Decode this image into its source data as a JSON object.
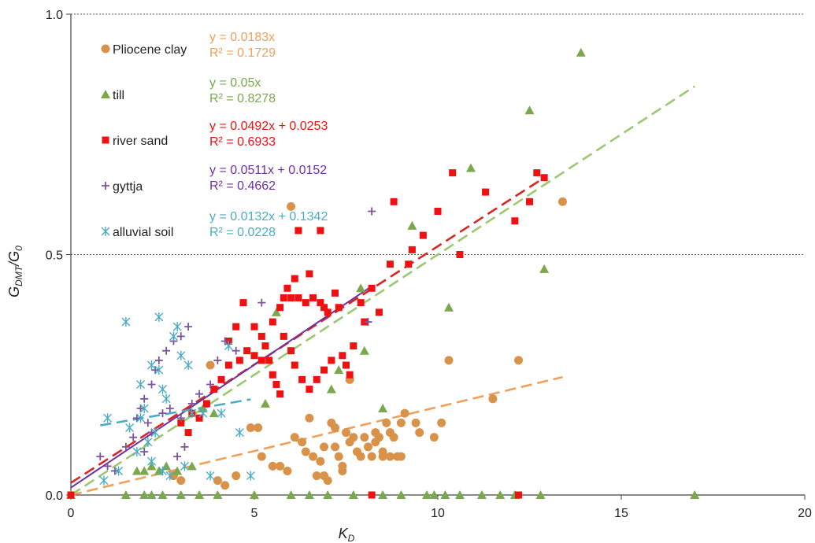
{
  "chart_data": {
    "type": "scatter",
    "xlabel": {
      "main": "K",
      "sub": "D"
    },
    "ylabel": {
      "main": "G",
      "sub": "DMT",
      "main2": "/G",
      "sub2": "0"
    },
    "xlim": [
      0,
      20
    ],
    "ylim": [
      0,
      1
    ],
    "x_ticks": [
      0,
      5,
      10,
      15,
      20
    ],
    "x_tick_labels": [
      "0",
      "5",
      "10",
      "15",
      "20"
    ],
    "y_ticks": [
      0,
      0.5,
      1
    ],
    "y_tick_labels": [
      "0.0",
      "0.5",
      "1.0"
    ],
    "grid": "horizontal dashed at 0.5 and 1.0",
    "legend_position": "top-left",
    "series": [
      {
        "name": "Pliocene clay",
        "marker": "circle",
        "color": "#d9924a",
        "equation": "y = 0.0183x",
        "r2": "R² = 0.1729",
        "eq_color": "#f0a05a",
        "fit": {
          "slope": 0.0183,
          "intercept": 0,
          "x0": 0,
          "x1": 13.4,
          "color": "#f0a05a"
        },
        "points": [
          [
            2.8,
            0.04
          ],
          [
            3.0,
            0.03
          ],
          [
            4.0,
            0.03
          ],
          [
            4.2,
            0.02
          ],
          [
            4.5,
            0.04
          ],
          [
            3.8,
            0.27
          ],
          [
            4.9,
            0.14
          ],
          [
            5.1,
            0.14
          ],
          [
            5.2,
            0.08
          ],
          [
            5.5,
            0.06
          ],
          [
            5.7,
            0.06
          ],
          [
            5.9,
            0.05
          ],
          [
            6.0,
            0.6
          ],
          [
            6.1,
            0.12
          ],
          [
            6.3,
            0.11
          ],
          [
            6.4,
            0.09
          ],
          [
            6.5,
            0.16
          ],
          [
            6.6,
            0.08
          ],
          [
            6.8,
            0.07
          ],
          [
            6.9,
            0.1
          ],
          [
            6.7,
            0.04
          ],
          [
            6.9,
            0.04
          ],
          [
            7.0,
            0.03
          ],
          [
            7.1,
            0.15
          ],
          [
            7.2,
            0.14
          ],
          [
            7.2,
            0.1
          ],
          [
            7.3,
            0.08
          ],
          [
            7.4,
            0.06
          ],
          [
            7.4,
            0.05
          ],
          [
            7.5,
            0.13
          ],
          [
            7.6,
            0.11
          ],
          [
            7.6,
            0.24
          ],
          [
            7.7,
            0.12
          ],
          [
            7.8,
            0.09
          ],
          [
            7.9,
            0.08
          ],
          [
            8.0,
            0.12
          ],
          [
            8.1,
            0.1
          ],
          [
            8.2,
            0.08
          ],
          [
            8.3,
            0.11
          ],
          [
            8.3,
            0.13
          ],
          [
            8.4,
            0.12
          ],
          [
            8.5,
            0.09
          ],
          [
            8.5,
            0.08
          ],
          [
            8.6,
            0.15
          ],
          [
            8.7,
            0.13
          ],
          [
            8.8,
            0.12
          ],
          [
            8.9,
            0.08
          ],
          [
            9.0,
            0.15
          ],
          [
            9.1,
            0.17
          ],
          [
            9.4,
            0.15
          ],
          [
            9.5,
            0.13
          ],
          [
            9.9,
            0.12
          ],
          [
            10.1,
            0.15
          ],
          [
            10.3,
            0.28
          ],
          [
            11.5,
            0.2
          ],
          [
            12.2,
            0.28
          ],
          [
            13.4,
            0.61
          ],
          [
            9.0,
            0.08
          ],
          [
            8.7,
            0.08
          ]
        ]
      },
      {
        "name": "till",
        "marker": "triangle",
        "color": "#7aa84c",
        "equation": "y = 0.05x",
        "r2": "R² = 0.8278",
        "eq_color": "#7aa84c",
        "fit": {
          "slope": 0.05,
          "intercept": 0,
          "x0": 0,
          "x1": 17,
          "color": "#9bc870"
        },
        "points": [
          [
            0,
            0
          ],
          [
            1.5,
            0
          ],
          [
            2.0,
            0
          ],
          [
            2.2,
            0
          ],
          [
            2.5,
            0
          ],
          [
            3.0,
            0
          ],
          [
            3.5,
            0
          ],
          [
            4.0,
            0
          ],
          [
            5.0,
            0
          ],
          [
            6.0,
            0
          ],
          [
            6.5,
            0
          ],
          [
            7.0,
            0
          ],
          [
            7.7,
            0
          ],
          [
            8.5,
            0
          ],
          [
            9.0,
            0
          ],
          [
            9.7,
            0
          ],
          [
            9.9,
            0
          ],
          [
            10.2,
            0
          ],
          [
            10.6,
            0
          ],
          [
            11.2,
            0
          ],
          [
            11.7,
            0
          ],
          [
            12.1,
            0
          ],
          [
            12.8,
            0
          ],
          [
            17.0,
            0
          ],
          [
            1.8,
            0.05
          ],
          [
            2.0,
            0.05
          ],
          [
            2.2,
            0.06
          ],
          [
            2.4,
            0.05
          ],
          [
            2.6,
            0.06
          ],
          [
            2.9,
            0.05
          ],
          [
            3.3,
            0.06
          ],
          [
            3.6,
            0.18
          ],
          [
            3.9,
            0.17
          ],
          [
            5.3,
            0.19
          ],
          [
            5.6,
            0.38
          ],
          [
            7.1,
            0.22
          ],
          [
            7.3,
            0.26
          ],
          [
            7.9,
            0.43
          ],
          [
            8.0,
            0.3
          ],
          [
            8.5,
            0.18
          ],
          [
            9.3,
            0.56
          ],
          [
            10.3,
            0.39
          ],
          [
            10.9,
            0.68
          ],
          [
            12.5,
            0.8
          ],
          [
            12.9,
            0.47
          ],
          [
            13.9,
            0.92
          ]
        ]
      },
      {
        "name": "river sand",
        "marker": "square",
        "color": "#ee1111",
        "equation": "y = 0.0492x + 0.0253",
        "r2": "R² = 0.6933",
        "eq_color": "#ee1111",
        "fit": {
          "slope": 0.0492,
          "intercept": 0.0253,
          "x0": 0,
          "x1": 12.9,
          "color": "#dd2222"
        },
        "points": [
          [
            0,
            0
          ],
          [
            3.0,
            0.15
          ],
          [
            3.2,
            0.13
          ],
          [
            3.3,
            0.17
          ],
          [
            3.5,
            0.16
          ],
          [
            3.7,
            0.19
          ],
          [
            3.9,
            0.22
          ],
          [
            4.1,
            0.24
          ],
          [
            4.3,
            0.27
          ],
          [
            4.6,
            0.28
          ],
          [
            4.8,
            0.3
          ],
          [
            5.0,
            0.29
          ],
          [
            4.7,
            0.4
          ],
          [
            5.0,
            0.35
          ],
          [
            5.2,
            0.33
          ],
          [
            5.3,
            0.31
          ],
          [
            5.4,
            0.28
          ],
          [
            5.5,
            0.25
          ],
          [
            5.6,
            0.23
          ],
          [
            5.7,
            0.21
          ],
          [
            5.5,
            0.36
          ],
          [
            5.7,
            0.39
          ],
          [
            5.8,
            0.41
          ],
          [
            5.9,
            0.43
          ],
          [
            6.0,
            0.41
          ],
          [
            6.2,
            0.41
          ],
          [
            6.4,
            0.4
          ],
          [
            6.6,
            0.41
          ],
          [
            6.8,
            0.4
          ],
          [
            6.9,
            0.39
          ],
          [
            7.0,
            0.38
          ],
          [
            7.2,
            0.42
          ],
          [
            7.3,
            0.39
          ],
          [
            5.8,
            0.33
          ],
          [
            6.0,
            0.3
          ],
          [
            6.1,
            0.27
          ],
          [
            6.3,
            0.24
          ],
          [
            6.5,
            0.22
          ],
          [
            6.7,
            0.24
          ],
          [
            6.9,
            0.26
          ],
          [
            7.1,
            0.28
          ],
          [
            7.4,
            0.29
          ],
          [
            7.5,
            0.27
          ],
          [
            7.6,
            0.25
          ],
          [
            7.7,
            0.31
          ],
          [
            7.9,
            0.4
          ],
          [
            8.2,
            0.43
          ],
          [
            8.0,
            0.36
          ],
          [
            8.4,
            0.38
          ],
          [
            8.7,
            0.48
          ],
          [
            8.8,
            0.61
          ],
          [
            9.2,
            0.48
          ],
          [
            9.3,
            0.51
          ],
          [
            9.6,
            0.54
          ],
          [
            10.0,
            0.59
          ],
          [
            10.4,
            0.67
          ],
          [
            10.6,
            0.5
          ],
          [
            11.3,
            0.63
          ],
          [
            12.1,
            0.57
          ],
          [
            12.5,
            0.61
          ],
          [
            12.7,
            0.67
          ],
          [
            12.9,
            0.66
          ],
          [
            6.2,
            0.55
          ],
          [
            6.8,
            0.55
          ],
          [
            8.2,
            0
          ],
          [
            12.2,
            0
          ],
          [
            4.3,
            0.32
          ],
          [
            4.5,
            0.35
          ],
          [
            5.2,
            0.28
          ],
          [
            6.1,
            0.45
          ],
          [
            6.5,
            0.46
          ]
        ]
      },
      {
        "name": "gyttja",
        "marker": "plus",
        "color": "#7b559c",
        "equation": "y = 0.0511x + 0.0152",
        "r2": "R² = 0.4662",
        "eq_color": "#7030a0",
        "fit": {
          "slope": 0.0511,
          "intercept": 0.0152,
          "x0": 0,
          "x1": 8.2,
          "color": "#7030a0"
        },
        "points": [
          [
            0.8,
            0.08
          ],
          [
            1.0,
            0.06
          ],
          [
            1.2,
            0.05
          ],
          [
            1.5,
            0.1
          ],
          [
            1.7,
            0.12
          ],
          [
            1.8,
            0.16
          ],
          [
            1.9,
            0.18
          ],
          [
            2.0,
            0.2
          ],
          [
            2.0,
            0.09
          ],
          [
            2.2,
            0.23
          ],
          [
            2.3,
            0.26
          ],
          [
            2.4,
            0.28
          ],
          [
            2.6,
            0.3
          ],
          [
            2.8,
            0.32
          ],
          [
            3.0,
            0.33
          ],
          [
            3.2,
            0.35
          ],
          [
            2.1,
            0.15
          ],
          [
            2.2,
            0.13
          ],
          [
            2.5,
            0.17
          ],
          [
            2.7,
            0.18
          ],
          [
            3.0,
            0.16
          ],
          [
            3.3,
            0.19
          ],
          [
            3.5,
            0.21
          ],
          [
            3.8,
            0.23
          ],
          [
            4.0,
            0.28
          ],
          [
            4.2,
            0.32
          ],
          [
            4.5,
            0.3
          ],
          [
            5.2,
            0.4
          ],
          [
            8.1,
            0.36
          ],
          [
            8.2,
            0.59
          ],
          [
            2.9,
            0.08
          ],
          [
            3.1,
            0.1
          ]
        ]
      },
      {
        "name": "alluvial soil",
        "marker": "asterisk",
        "color": "#4bacc6",
        "equation": "y = 0.0132x + 0.1342",
        "r2": "R² = 0.0228",
        "eq_color": "#4bacc6",
        "fit": {
          "slope": 0.0132,
          "intercept": 0.1342,
          "x0": 0.8,
          "x1": 4.9,
          "color": "#4bacc6"
        },
        "points": [
          [
            0.9,
            0.03
          ],
          [
            1.0,
            0.16
          ],
          [
            1.3,
            0.05
          ],
          [
            1.5,
            0.36
          ],
          [
            1.6,
            0.14
          ],
          [
            1.8,
            0.09
          ],
          [
            1.9,
            0.16
          ],
          [
            1.9,
            0.23
          ],
          [
            2.0,
            0.18
          ],
          [
            2.1,
            0.11
          ],
          [
            2.2,
            0.27
          ],
          [
            2.3,
            0.13
          ],
          [
            2.4,
            0.26
          ],
          [
            2.4,
            0.37
          ],
          [
            2.5,
            0.22
          ],
          [
            2.6,
            0.2
          ],
          [
            2.7,
            0.04
          ],
          [
            2.8,
            0.33
          ],
          [
            2.9,
            0.35
          ],
          [
            3.0,
            0.29
          ],
          [
            3.1,
            0.06
          ],
          [
            3.2,
            0.27
          ],
          [
            3.3,
            0.17
          ],
          [
            3.6,
            0.17
          ],
          [
            3.8,
            0.04
          ],
          [
            4.1,
            0.17
          ],
          [
            4.3,
            0.31
          ],
          [
            4.6,
            0.13
          ],
          [
            4.9,
            0.04
          ],
          [
            2.2,
            0.07
          ],
          [
            2.5,
            0.05
          ]
        ]
      }
    ]
  }
}
